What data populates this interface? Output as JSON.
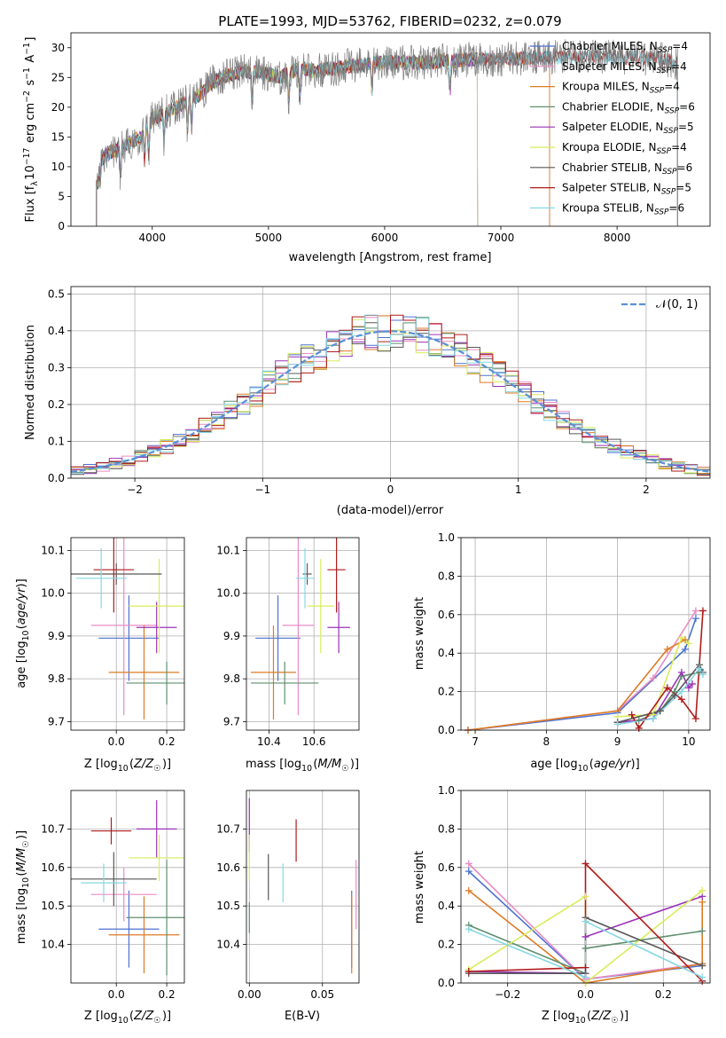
{
  "title": "PLATE=1993, MJD=53762, FIBERID=0232, z=0.079",
  "colors": {
    "Chabrier MILES": "#4c72d0",
    "Salpeter MILES": "#e98cc4",
    "Kroupa MILES": "#dd7b24",
    "Chabrier ELODIE": "#5f8f6f",
    "Salpeter ELODIE": "#9a32b8",
    "Kroupa ELODIE": "#d9ec5a",
    "Chabrier STELIB": "#595959",
    "Salpeter STELIB": "#b11a1a",
    "Kroupa STELIB": "#86d7e3"
  },
  "chart_data": [
    {
      "id": "spectrum",
      "type": "line",
      "xlabel": "wavelength [Angstrom, rest frame]",
      "ylabel": "Flux [f_λ10^-17 erg cm^-2 s^-1 A^-1]",
      "xlim": [
        3300,
        8800
      ],
      "ylim": [
        0,
        32.5
      ],
      "xticks": [
        4000,
        5000,
        6000,
        7000,
        8000
      ],
      "yticks": [
        0,
        5,
        10,
        15,
        20,
        25,
        30
      ],
      "grid": false,
      "legend_position": "right",
      "legend": [
        {
          "name": "Chabrier MILES",
          "n": "4"
        },
        {
          "name": "Salpeter MILES",
          "n": "4"
        },
        {
          "name": "Kroupa MILES",
          "n": "4"
        },
        {
          "name": "Chabrier ELODIE",
          "n": "6"
        },
        {
          "name": "Salpeter ELODIE",
          "n": "5"
        },
        {
          "name": "Kroupa ELODIE",
          "n": "4"
        },
        {
          "name": "Chabrier STELIB",
          "n": "6"
        },
        {
          "name": "Salpeter STELIB",
          "n": "5"
        },
        {
          "name": "Kroupa STELIB",
          "n": "6"
        }
      ],
      "continuum": [
        [
          3520,
          10
        ],
        [
          3600,
          12
        ],
        [
          3700,
          13
        ],
        [
          3800,
          14
        ],
        [
          3900,
          15
        ],
        [
          4000,
          18
        ],
        [
          4100,
          19
        ],
        [
          4200,
          20
        ],
        [
          4300,
          21
        ],
        [
          4400,
          22
        ],
        [
          4500,
          24
        ],
        [
          4600,
          25
        ],
        [
          4700,
          25.5
        ],
        [
          4800,
          26
        ],
        [
          4900,
          26
        ],
        [
          5000,
          25.5
        ],
        [
          5100,
          25
        ],
        [
          5200,
          26
        ],
        [
          5300,
          26.5
        ],
        [
          5400,
          26
        ],
        [
          5500,
          26.5
        ],
        [
          5600,
          26.5
        ],
        [
          5700,
          27
        ],
        [
          5800,
          27
        ],
        [
          5900,
          27.5
        ],
        [
          6000,
          27.5
        ],
        [
          6100,
          27.5
        ],
        [
          6200,
          27.5
        ],
        [
          6300,
          27.5
        ],
        [
          6400,
          27.5
        ],
        [
          6500,
          27.8
        ],
        [
          6600,
          27.8
        ],
        [
          6700,
          28
        ],
        [
          6800,
          28
        ],
        [
          6900,
          28
        ],
        [
          7000,
          28
        ],
        [
          7100,
          28.2
        ],
        [
          7200,
          28.2
        ],
        [
          7300,
          28.3
        ],
        [
          7400,
          28.3
        ],
        [
          7600,
          28.5
        ],
        [
          7800,
          28.5
        ],
        [
          8000,
          28.4
        ],
        [
          8200,
          28.3
        ],
        [
          8400,
          28
        ],
        [
          8520,
          27.5
        ]
      ],
      "model_end_wavelength": {
        "MILES": 7420,
        "ELODIE": 6800,
        "STELIB": 8520
      }
    },
    {
      "id": "residuals",
      "type": "histogram",
      "xlabel": "(data-model)/error",
      "ylabel": "Normed distribution",
      "xlim": [
        -2.5,
        2.5
      ],
      "ylim": [
        0,
        0.52
      ],
      "xticks": [
        -2,
        -1,
        0,
        1,
        2
      ],
      "yticks": [
        0.0,
        0.1,
        0.2,
        0.3,
        0.4,
        0.5
      ],
      "grid": true,
      "legend": "𝒩(0, 1)",
      "bin_width": 0.1,
      "bin_start": -2.5
    },
    {
      "id": "age_vs_Z",
      "type": "errorbar",
      "xlabel": "Z [log10(Z/Z☉)]",
      "ylabel": "age  [log10(age/yr)]",
      "xlim": [
        -0.18,
        0.27
      ],
      "ylim": [
        9.68,
        10.13
      ],
      "xticks": [
        0.0,
        0.2
      ],
      "yticks": [
        9.7,
        9.8,
        9.9,
        10.0,
        10.1
      ],
      "grid": true,
      "points": [
        {
          "model": "Chabrier MILES",
          "x": 0.05,
          "xerr": 0.12,
          "y": 9.895,
          "yerr": 0.1
        },
        {
          "model": "Salpeter MILES",
          "x": 0.03,
          "xerr": 0.13,
          "y": 9.925,
          "yerr": 0.21
        },
        {
          "model": "Kroupa MILES",
          "x": 0.11,
          "xerr": 0.14,
          "y": 9.815,
          "yerr": 0.11
        },
        {
          "model": "Chabrier ELODIE",
          "x": 0.2,
          "xerr": 0.16,
          "y": 9.79,
          "yerr": 0.05
        },
        {
          "model": "Salpeter ELODIE",
          "x": 0.16,
          "xerr": 0.08,
          "y": 9.92,
          "yerr": 0.06
        },
        {
          "model": "Kroupa ELODIE",
          "x": 0.17,
          "xerr": 0.12,
          "y": 9.97,
          "yerr": 0.11
        },
        {
          "model": "Chabrier STELIB",
          "x": 0.0,
          "xerr": 0.18,
          "y": 10.045,
          "yerr": 0.025
        },
        {
          "model": "Salpeter STELIB",
          "x": -0.01,
          "xerr": 0.08,
          "y": 10.055,
          "yerr": 0.1
        },
        {
          "model": "Kroupa STELIB",
          "x": -0.06,
          "xerr": 0.1,
          "y": 10.035,
          "yerr": 0.07
        }
      ]
    },
    {
      "id": "age_vs_mass",
      "type": "errorbar",
      "xlabel": "mass [log10(M/M☉)]",
      "ylabel": "",
      "xlim": [
        10.3,
        10.8
      ],
      "ylim": [
        9.68,
        10.13
      ],
      "xticks": [
        10.4,
        10.6
      ],
      "yticks": [
        9.7,
        9.8,
        9.9,
        10.0,
        10.1
      ],
      "grid": true,
      "points": [
        {
          "model": "Chabrier MILES",
          "x": 10.44,
          "xerr": 0.1,
          "y": 9.895,
          "yerr": 0.1
        },
        {
          "model": "Salpeter MILES",
          "x": 10.53,
          "xerr": 0.07,
          "y": 9.925,
          "yerr": 0.21
        },
        {
          "model": "Kroupa MILES",
          "x": 10.42,
          "xerr": 0.1,
          "y": 9.815,
          "yerr": 0.11
        },
        {
          "model": "Chabrier ELODIE",
          "x": 10.47,
          "xerr": 0.15,
          "y": 9.79,
          "yerr": 0.05
        },
        {
          "model": "Salpeter ELODIE",
          "x": 10.71,
          "xerr": 0.05,
          "y": 9.92,
          "yerr": 0.06
        },
        {
          "model": "Kroupa ELODIE",
          "x": 10.63,
          "xerr": 0.06,
          "y": 9.97,
          "yerr": 0.11
        },
        {
          "model": "Chabrier STELIB",
          "x": 10.57,
          "xerr": 0.02,
          "y": 10.045,
          "yerr": 0.025
        },
        {
          "model": "Salpeter STELIB",
          "x": 10.7,
          "xerr": 0.04,
          "y": 10.055,
          "yerr": 0.1
        },
        {
          "model": "Kroupa STELIB",
          "x": 10.56,
          "xerr": 0.04,
          "y": 10.035,
          "yerr": 0.07
        }
      ]
    },
    {
      "id": "mass_weight_vs_age",
      "type": "line",
      "xlabel": "age  [log10(age/yr)]",
      "ylabel": "mass weight",
      "xlim": [
        6.8,
        10.3
      ],
      "ylim": [
        0,
        1
      ],
      "xticks": [
        7,
        8,
        9,
        10
      ],
      "yticks": [
        0.0,
        0.2,
        0.4,
        0.6,
        0.8,
        1.0
      ],
      "grid": true,
      "series": [
        {
          "model": "Chabrier MILES",
          "x": [
            6.9,
            9.0,
            9.95,
            10.1
          ],
          "y": [
            0.0,
            0.09,
            0.42,
            0.58
          ]
        },
        {
          "model": "Salpeter MILES",
          "x": [
            6.9,
            9.0,
            9.5,
            10.1
          ],
          "y": [
            0.0,
            0.1,
            0.27,
            0.62
          ]
        },
        {
          "model": "Kroupa MILES",
          "x": [
            6.9,
            9.0,
            9.7,
            9.95
          ],
          "y": [
            0.0,
            0.1,
            0.42,
            0.47
          ]
        },
        {
          "model": "Chabrier ELODIE",
          "x": [
            9.0,
            9.3,
            9.6,
            9.8,
            9.9,
            10.15
          ],
          "y": [
            0.04,
            0.05,
            0.1,
            0.2,
            0.28,
            0.3
          ]
        },
        {
          "model": "Salpeter ELODIE",
          "x": [
            9.0,
            9.5,
            9.9,
            10.0,
            10.05
          ],
          "y": [
            0.04,
            0.06,
            0.3,
            0.22,
            0.24
          ]
        },
        {
          "model": "Kroupa ELODIE",
          "x": [
            9.0,
            9.5,
            9.9,
            10.0
          ],
          "y": [
            0.07,
            0.08,
            0.48,
            0.45
          ]
        },
        {
          "model": "Chabrier STELIB",
          "x": [
            9.0,
            9.6,
            9.8,
            10.15,
            10.2
          ],
          "y": [
            0.04,
            0.1,
            0.18,
            0.34,
            0.3
          ]
        },
        {
          "model": "Salpeter STELIB",
          "x": [
            9.2,
            9.3,
            9.7,
            9.9,
            10.1,
            10.2
          ],
          "y": [
            0.08,
            0.01,
            0.22,
            0.16,
            0.06,
            0.62
          ]
        },
        {
          "model": "Kroupa STELIB",
          "x": [
            9.0,
            9.5,
            9.9,
            10.15,
            10.2
          ],
          "y": [
            0.03,
            0.06,
            0.2,
            0.32,
            0.29
          ]
        }
      ]
    },
    {
      "id": "mass_vs_Z",
      "type": "errorbar",
      "xlabel": "Z [log10(Z/Z☉)]",
      "ylabel": "mass [log10(M/M☉)]",
      "xlim": [
        -0.18,
        0.27
      ],
      "ylim": [
        10.3,
        10.8
      ],
      "xticks": [
        0.0,
        0.2
      ],
      "yticks": [
        10.4,
        10.5,
        10.6,
        10.7
      ],
      "grid": true,
      "points": [
        {
          "model": "Chabrier MILES",
          "x": 0.05,
          "xerr": 0.12,
          "y": 10.44,
          "yerr": 0.1
        },
        {
          "model": "Salpeter MILES",
          "x": 0.03,
          "xerr": 0.13,
          "y": 10.53,
          "yerr": 0.07
        },
        {
          "model": "Kroupa MILES",
          "x": 0.11,
          "xerr": 0.14,
          "y": 10.425,
          "yerr": 0.1
        },
        {
          "model": "Chabrier ELODIE",
          "x": 0.2,
          "xerr": 0.16,
          "y": 10.47,
          "yerr": 0.15
        },
        {
          "model": "Salpeter ELODIE",
          "x": 0.16,
          "xerr": 0.08,
          "y": 10.7,
          "yerr": 0.075
        },
        {
          "model": "Kroupa ELODIE",
          "x": 0.17,
          "xerr": 0.12,
          "y": 10.625,
          "yerr": 0.06
        },
        {
          "model": "Chabrier STELIB",
          "x": -0.01,
          "xerr": 0.17,
          "y": 10.57,
          "yerr": 0.07
        },
        {
          "model": "Salpeter STELIB",
          "x": -0.02,
          "xerr": 0.08,
          "y": 10.695,
          "yerr": 0.035
        },
        {
          "model": "Kroupa STELIB",
          "x": -0.05,
          "xerr": 0.09,
          "y": 10.56,
          "yerr": 0.05
        }
      ]
    },
    {
      "id": "mass_vs_ebv",
      "type": "errorbar",
      "xlabel": "E(B-V)",
      "ylabel": "",
      "xlim": [
        -0.002,
        0.075
      ],
      "ylim": [
        10.3,
        10.8
      ],
      "xticks": [
        0.0,
        0.05
      ],
      "yticks": [
        10.4,
        10.5,
        10.6,
        10.7
      ],
      "grid": true,
      "points": [
        {
          "model": "Chabrier MILES",
          "x": 0.07,
          "y": 10.44,
          "yerr": 0.1
        },
        {
          "model": "Salpeter MILES",
          "x": 0.073,
          "y": 10.53,
          "yerr": 0.09
        },
        {
          "model": "Kroupa MILES",
          "x": 0.07,
          "y": 10.425,
          "yerr": 0.1
        },
        {
          "model": "Chabrier ELODIE",
          "x": 0.0,
          "y": 10.47,
          "yerr": 0.04
        },
        {
          "model": "Salpeter ELODIE",
          "x": 0.0,
          "y": 10.71,
          "yerr": 0.07
        },
        {
          "model": "Kroupa ELODIE",
          "x": 0.0,
          "y": 10.625,
          "yerr": 0.06
        },
        {
          "model": "Chabrier STELIB",
          "x": 0.013,
          "y": 10.575,
          "yerr": 0.06
        },
        {
          "model": "Salpeter STELIB",
          "x": 0.032,
          "y": 10.67,
          "yerr": 0.055
        },
        {
          "model": "Kroupa STELIB",
          "x": 0.023,
          "y": 10.56,
          "yerr": 0.05
        }
      ]
    },
    {
      "id": "mass_weight_vs_Z",
      "type": "line",
      "xlabel": "Z [log10(Z/Z☉)]",
      "ylabel": "mass weight",
      "xlim": [
        -0.32,
        0.32
      ],
      "ylim": [
        0,
        1
      ],
      "xticks": [
        -0.2,
        0.0,
        0.2
      ],
      "yticks": [
        0.0,
        0.2,
        0.4,
        0.6,
        0.8,
        1.0
      ],
      "grid": true,
      "series": [
        {
          "model": "Chabrier MILES",
          "x": [
            -0.3,
            0.0,
            0.3
          ],
          "y": [
            0.58,
            0.02,
            0.09
          ]
        },
        {
          "model": "Salpeter MILES",
          "x": [
            -0.3,
            0.0,
            0.3
          ],
          "y": [
            0.62,
            0.02,
            0.1
          ]
        },
        {
          "model": "Kroupa MILES",
          "x": [
            -0.3,
            0.0,
            0.3,
            0.3
          ],
          "y": [
            0.48,
            0.0,
            0.1,
            0.42
          ]
        },
        {
          "model": "Chabrier ELODIE",
          "x": [
            -0.3,
            0.0,
            0.0,
            0.3
          ],
          "y": [
            0.3,
            0.05,
            0.18,
            0.27
          ]
        },
        {
          "model": "Salpeter ELODIE",
          "x": [
            -0.3,
            0.0,
            0.0,
            0.3
          ],
          "y": [
            0.06,
            0.05,
            0.24,
            0.45
          ]
        },
        {
          "model": "Kroupa ELODIE",
          "x": [
            -0.3,
            0.0,
            0.0,
            0.3
          ],
          "y": [
            0.07,
            0.45,
            0.0,
            0.48
          ]
        },
        {
          "model": "Chabrier STELIB",
          "x": [
            -0.3,
            0.0,
            0.0,
            0.3
          ],
          "y": [
            0.05,
            0.05,
            0.34,
            0.09
          ]
        },
        {
          "model": "Salpeter STELIB",
          "x": [
            -0.3,
            0.0,
            0.0,
            0.3
          ],
          "y": [
            0.06,
            0.08,
            0.62,
            0.01
          ]
        },
        {
          "model": "Kroupa STELIB",
          "x": [
            -0.3,
            0.0,
            0.0,
            0.3
          ],
          "y": [
            0.28,
            0.03,
            0.32,
            0.03
          ]
        }
      ]
    }
  ]
}
